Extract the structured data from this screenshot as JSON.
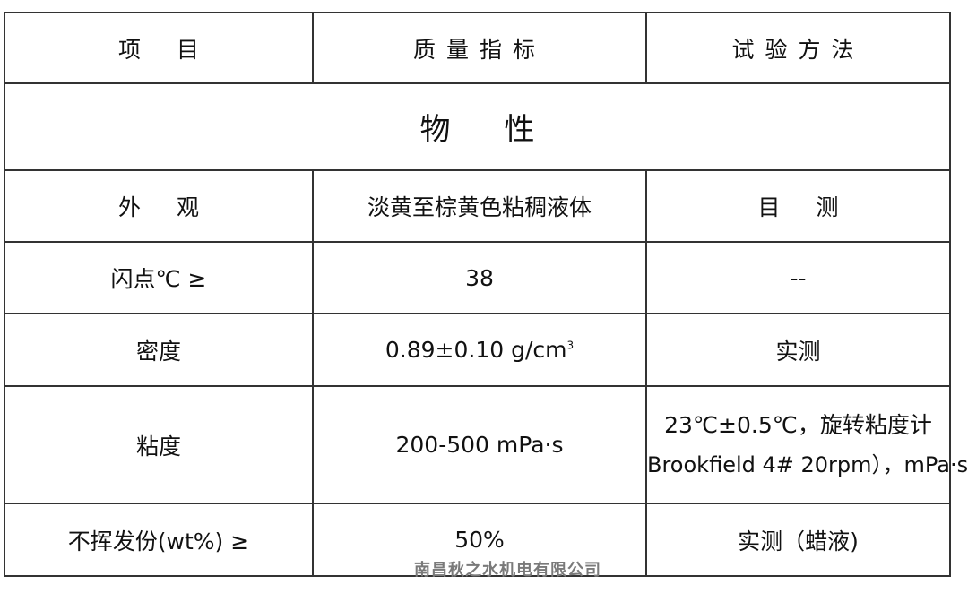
{
  "header": {
    "item": "项目",
    "spec": "质量指标",
    "method": "试验方法"
  },
  "section": "物性",
  "rows": [
    {
      "item": "外观",
      "spec": "淡黄至棕黄色粘稠液体",
      "method": "目测"
    },
    {
      "item": "闪点℃ ≥",
      "spec": "38",
      "method": "--"
    },
    {
      "item": "密度",
      "spec": "0.89±0.10 g/cm",
      "spec_sup": "3",
      "method": "实测"
    },
    {
      "item": "粘度",
      "spec": "200-500 mPa·s",
      "method_line1": "23℃±0.5℃，旋转粘度计",
      "method_line2": "Brookfield 4# 20rpm），mPa·s"
    },
    {
      "item": "不挥发份(wt%) ≥",
      "spec": "50%",
      "method": "实测（蜡液)"
    }
  ],
  "watermark": "南昌秋之水机电有限公司"
}
